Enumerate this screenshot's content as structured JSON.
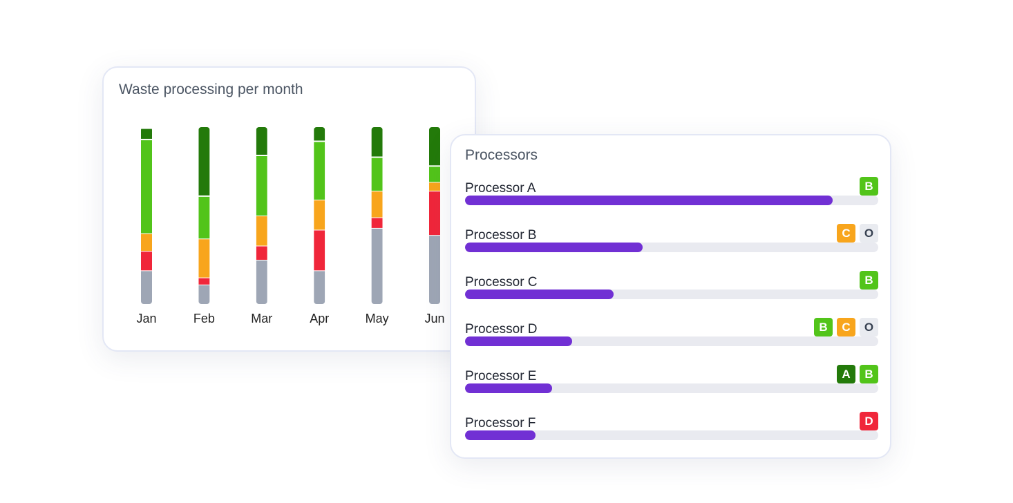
{
  "colors": {
    "A": "#237a0a",
    "B": "#52c41a",
    "C": "#f8a51c",
    "D": "#f0263a",
    "O": "#9ea6b5",
    "badge_O_bg": "#e9ebf0",
    "bar_fill": "#7130d4",
    "bar_track": "#e9eaf0"
  },
  "chart_data": {
    "type": "bar",
    "stacked": true,
    "title": "Waste processing per month",
    "categories": [
      "Jan",
      "Feb",
      "Mar",
      "Apr",
      "May",
      "Jun"
    ],
    "series": [
      {
        "name": "O",
        "values": [
          19,
          11,
          25,
          19,
          43,
          39
        ]
      },
      {
        "name": "D",
        "values": [
          11,
          4,
          8,
          23,
          6,
          25
        ]
      },
      {
        "name": "C",
        "values": [
          10,
          22,
          17,
          17,
          15,
          5
        ]
      },
      {
        "name": "B",
        "values": [
          53,
          24,
          34,
          33,
          19,
          9
        ]
      },
      {
        "name": "A",
        "values": [
          6,
          39,
          16,
          8,
          17,
          22
        ]
      }
    ],
    "xlabel": "",
    "ylabel": "",
    "ylim": [
      0,
      100
    ],
    "grid": false,
    "legend": "none"
  },
  "processors": {
    "title": "Processors",
    "items": [
      {
        "name": "Processor A",
        "value": 89,
        "grades": [
          "B"
        ]
      },
      {
        "name": "Processor B",
        "value": 43,
        "grades": [
          "C",
          "O"
        ]
      },
      {
        "name": "Processor C",
        "value": 36,
        "grades": [
          "B"
        ]
      },
      {
        "name": "Processor D",
        "value": 26,
        "grades": [
          "B",
          "C",
          "O"
        ]
      },
      {
        "name": "Processor E",
        "value": 21,
        "grades": [
          "A",
          "B"
        ]
      },
      {
        "name": "Processor F",
        "value": 17,
        "grades": [
          "D"
        ]
      }
    ]
  }
}
